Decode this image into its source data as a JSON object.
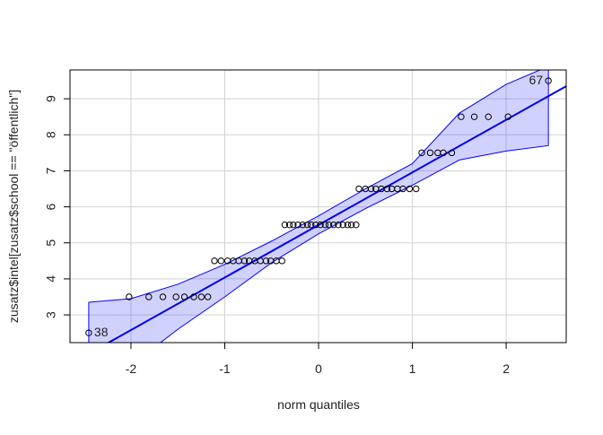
{
  "chart_data": {
    "type": "qq",
    "x_label": "norm quantiles",
    "y_label": "zusatz$intel[zusatz$school == \"öffentlich\"]",
    "xlim": [
      -2.65,
      2.64
    ],
    "ylim": [
      2.23,
      9.8
    ],
    "xticks": [
      -2,
      -1,
      0,
      1,
      2
    ],
    "yticks": [
      3,
      4,
      5,
      6,
      7,
      8,
      9
    ],
    "grid": true,
    "series": [
      {
        "color": "#000000",
        "x": [
          -2.45,
          -2.02,
          -1.81,
          -1.66,
          -1.52,
          -1.43,
          -1.33,
          -1.25,
          -1.18,
          -1.11,
          -1.04,
          -0.97,
          -0.91,
          -0.85,
          -0.79,
          -0.74,
          -0.68,
          -0.62,
          -0.56,
          -0.51,
          -0.45,
          -0.39,
          -0.36,
          -0.31,
          -0.27,
          -0.22,
          -0.17,
          -0.12,
          -0.08,
          -0.03,
          0.02,
          0.07,
          0.11,
          0.16,
          0.21,
          0.26,
          0.31,
          0.35,
          0.4,
          0.43,
          0.5,
          0.56,
          0.61,
          0.67,
          0.73,
          0.78,
          0.84,
          0.9,
          0.97,
          1.04,
          1.1,
          1.19,
          1.27,
          1.33,
          1.42,
          1.52,
          1.66,
          1.81,
          2.02,
          2.45
        ],
        "y": [
          2.5,
          3.5,
          3.5,
          3.5,
          3.5,
          3.5,
          3.5,
          3.5,
          3.5,
          4.5,
          4.5,
          4.5,
          4.5,
          4.5,
          4.5,
          4.5,
          4.5,
          4.5,
          4.5,
          4.5,
          4.5,
          4.5,
          5.5,
          5.5,
          5.5,
          5.5,
          5.5,
          5.5,
          5.5,
          5.5,
          5.5,
          5.5,
          5.5,
          5.5,
          5.5,
          5.5,
          5.5,
          5.5,
          5.5,
          6.5,
          6.5,
          6.5,
          6.5,
          6.5,
          6.5,
          6.5,
          6.5,
          6.5,
          6.5,
          6.5,
          7.5,
          7.5,
          7.5,
          7.5,
          7.5,
          8.5,
          8.5,
          8.5,
          8.5,
          9.5
        ]
      }
    ],
    "fit": {
      "color": "#0000ee",
      "x": [
        -2.65,
        2.64
      ],
      "y": [
        1.63,
        9.35
      ]
    },
    "band": {
      "color": "#0000ff",
      "x": [
        -2.45,
        -2,
        -1.5,
        -1,
        -0.5,
        0,
        0.5,
        1,
        1.5,
        2,
        2.45
      ],
      "upper": [
        3.35,
        3.45,
        3.85,
        4.4,
        5.05,
        5.75,
        6.5,
        7.2,
        8.6,
        9.4,
        9.9
      ],
      "lower": [
        0.9,
        1.6,
        2.6,
        3.5,
        4.45,
        5.25,
        5.95,
        6.6,
        7.3,
        7.55,
        7.7
      ]
    },
    "annotations": [
      {
        "text": "38",
        "x": -2.45,
        "y": 2.5
      },
      {
        "text": "67",
        "x": 2.45,
        "y": 9.5
      }
    ]
  }
}
